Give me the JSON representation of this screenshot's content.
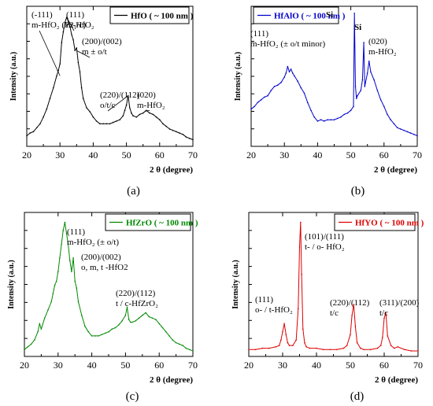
{
  "chart_data": [
    {
      "type": "line",
      "panel_label": "(a)",
      "xlabel": "2 θ (degree)",
      "ylabel": "Intensity (a.u.)",
      "xlim": [
        20,
        70
      ],
      "x_ticks": [
        20,
        30,
        40,
        50,
        60,
        70
      ],
      "y_ticks_labeled": false,
      "grid": false,
      "legend_position": "top-right",
      "series": [
        {
          "name": "HfO ( ~ 100 nm )",
          "color": "#000000",
          "x": [
            20,
            21,
            22,
            23,
            24,
            25,
            26,
            27,
            28,
            29,
            29.5,
            30,
            30.5,
            31,
            31.5,
            32,
            32.5,
            33,
            33.5,
            34,
            34.5,
            35,
            35.5,
            36,
            36.5,
            37,
            38,
            39,
            40,
            41,
            42,
            43,
            44,
            45,
            46,
            47,
            48,
            49,
            49.5,
            50,
            50.5,
            51,
            51.5,
            52,
            53,
            54,
            55,
            56,
            57,
            58,
            59,
            60,
            61,
            62,
            63,
            64,
            65,
            66,
            67,
            68,
            69,
            70
          ],
          "y": [
            0.08,
            0.1,
            0.11,
            0.14,
            0.17,
            0.22,
            0.28,
            0.36,
            0.44,
            0.53,
            0.57,
            0.62,
            0.78,
            0.86,
            0.93,
            0.97,
            0.94,
            0.9,
            0.84,
            0.8,
            0.72,
            0.74,
            0.63,
            0.56,
            0.44,
            0.36,
            0.29,
            0.26,
            0.22,
            0.19,
            0.17,
            0.17,
            0.17,
            0.17,
            0.18,
            0.19,
            0.2,
            0.23,
            0.27,
            0.31,
            0.38,
            0.29,
            0.25,
            0.23,
            0.22,
            0.24,
            0.25,
            0.27,
            0.25,
            0.24,
            0.22,
            0.2,
            0.17,
            0.15,
            0.13,
            0.12,
            0.11,
            0.1,
            0.09,
            0.07,
            0.06,
            0.05
          ]
        }
      ],
      "annotations": [
        {
          "lines": [
            "(-111)",
            "m-HfO₂ (P2₁/c)"
          ]
        },
        {
          "lines": [
            "(111)",
            "m-HfO₂"
          ]
        },
        {
          "lines": [
            "(200)/(002)",
            "m ± o/t"
          ]
        },
        {
          "lines": [
            "(220)/(112)",
            "o/t/c"
          ]
        },
        {
          "lines": [
            "(020)",
            "m-HfO₂"
          ]
        }
      ]
    },
    {
      "type": "line",
      "panel_label": "(b)",
      "xlabel": "2 θ (degree)",
      "ylabel": "Intensity (a.u.)",
      "xlim": [
        20,
        70
      ],
      "x_ticks": [
        20,
        30,
        40,
        50,
        60,
        70
      ],
      "y_ticks_labeled": false,
      "grid": false,
      "legend_position": "top-left",
      "series": [
        {
          "name": "HfAlO ( ~ 100 nm )",
          "color": "#0000cc",
          "x": [
            20,
            21,
            22,
            23,
            24,
            25,
            26,
            27,
            28,
            29,
            30,
            30.5,
            31,
            31.5,
            32,
            32.5,
            33,
            34,
            35,
            36,
            37,
            38,
            39,
            40,
            41,
            42,
            43,
            44,
            45,
            46,
            47,
            48,
            49,
            50,
            50.8,
            51.1,
            51.4,
            51.7,
            52,
            53,
            53.5,
            53.9,
            54.2,
            55,
            55.5,
            56,
            57,
            58,
            59,
            60,
            61,
            62,
            63,
            64,
            65,
            66,
            67,
            68,
            69,
            70
          ],
          "y": [
            0.28,
            0.3,
            0.33,
            0.35,
            0.37,
            0.38,
            0.42,
            0.45,
            0.46,
            0.48,
            0.52,
            0.55,
            0.6,
            0.56,
            0.58,
            0.55,
            0.53,
            0.49,
            0.44,
            0.4,
            0.33,
            0.27,
            0.22,
            0.19,
            0.2,
            0.19,
            0.2,
            0.2,
            0.2,
            0.21,
            0.22,
            0.24,
            0.25,
            0.27,
            0.3,
            1.0,
            0.45,
            0.36,
            0.38,
            0.42,
            0.5,
            0.78,
            0.45,
            0.55,
            0.64,
            0.56,
            0.5,
            0.42,
            0.35,
            0.3,
            0.24,
            0.2,
            0.17,
            0.14,
            0.13,
            0.12,
            0.11,
            0.1,
            0.09,
            0.08
          ]
        }
      ],
      "annotations": [
        {
          "lines": [
            "(111)",
            "m-HfO₂ (± o/t minor)"
          ]
        },
        {
          "lines": [
            "Si"
          ]
        },
        {
          "lines": [
            "Si"
          ]
        },
        {
          "lines": [
            "(020)",
            "m-HfO₂"
          ]
        }
      ]
    },
    {
      "type": "line",
      "panel_label": "(c)",
      "xlabel": "2 θ (degree)",
      "ylabel": "Intensity (a.u.)",
      "xlim": [
        20,
        70
      ],
      "x_ticks": [
        20,
        30,
        40,
        50,
        60,
        70
      ],
      "y_ticks_labeled": false,
      "grid": false,
      "legend_position": "top-right",
      "series": [
        {
          "name": "HfZrO ( ~ 100 nm )",
          "color": "#008800",
          "x": [
            20,
            21,
            22,
            23,
            24,
            24.5,
            25,
            26,
            27,
            28,
            28.5,
            29,
            29.5,
            30,
            30.5,
            31,
            31.5,
            32,
            32.5,
            33,
            33.5,
            34,
            34.5,
            35,
            35.5,
            36,
            37,
            38,
            39,
            40,
            41,
            42,
            43,
            44,
            45,
            46,
            47,
            48,
            49,
            50,
            50.5,
            51,
            51.5,
            52,
            53,
            54,
            55,
            56,
            57,
            58,
            59,
            60,
            61,
            62,
            63,
            64,
            65,
            66,
            67,
            68,
            69,
            70
          ],
          "y": [
            0.05,
            0.07,
            0.09,
            0.12,
            0.18,
            0.24,
            0.2,
            0.28,
            0.34,
            0.4,
            0.46,
            0.52,
            0.55,
            0.62,
            0.72,
            0.82,
            0.92,
            0.98,
            0.9,
            0.82,
            0.7,
            0.62,
            0.72,
            0.55,
            0.5,
            0.4,
            0.3,
            0.22,
            0.18,
            0.15,
            0.15,
            0.15,
            0.16,
            0.17,
            0.18,
            0.2,
            0.21,
            0.23,
            0.26,
            0.3,
            0.36,
            0.27,
            0.25,
            0.25,
            0.26,
            0.28,
            0.3,
            0.32,
            0.29,
            0.28,
            0.27,
            0.24,
            0.21,
            0.18,
            0.15,
            0.12,
            0.1,
            0.09,
            0.08,
            0.06,
            0.05,
            0.04
          ]
        }
      ],
      "annotations": [
        {
          "lines": [
            "(111)",
            "m-HfO₂ (± o/t)"
          ]
        },
        {
          "lines": [
            "(200)/(002)",
            "o, m, t -HfO2"
          ]
        },
        {
          "lines": [
            "(220)/(112)",
            "t / c-HfZrO₂"
          ]
        }
      ]
    },
    {
      "type": "line",
      "panel_label": "(d)",
      "xlabel": "2 θ (degree)",
      "ylabel": "Intensity (a.u.)",
      "xlim": [
        20,
        70
      ],
      "x_ticks": [
        20,
        30,
        40,
        50,
        60,
        70
      ],
      "y_ticks_labeled": false,
      "grid": false,
      "legend_position": "top-right",
      "series": [
        {
          "name": "HfYO ( ~ 100 nm )",
          "color": "#dd0000",
          "x": [
            20,
            22,
            24,
            26,
            28,
            29,
            29.5,
            30,
            30.5,
            31,
            31.5,
            32,
            33,
            34,
            34.6,
            35,
            35.3,
            35.6,
            36,
            36.5,
            37,
            38,
            40,
            42,
            44,
            46,
            48,
            49,
            50,
            50.5,
            51,
            51.5,
            52,
            53,
            54,
            56,
            58,
            59,
            59.5,
            60,
            60.5,
            61,
            62,
            63,
            64,
            66,
            68,
            70
          ],
          "y": [
            0.05,
            0.05,
            0.06,
            0.06,
            0.07,
            0.08,
            0.12,
            0.18,
            0.24,
            0.16,
            0.1,
            0.08,
            0.08,
            0.12,
            0.35,
            0.8,
            0.98,
            0.6,
            0.2,
            0.1,
            0.07,
            0.06,
            0.06,
            0.05,
            0.05,
            0.05,
            0.06,
            0.08,
            0.16,
            0.3,
            0.38,
            0.22,
            0.1,
            0.06,
            0.05,
            0.05,
            0.06,
            0.08,
            0.14,
            0.28,
            0.32,
            0.15,
            0.08,
            0.06,
            0.07,
            0.05,
            0.04,
            0.04
          ]
        }
      ],
      "annotations": [
        {
          "lines": [
            "(111)",
            "o- / t-HfO₂"
          ]
        },
        {
          "lines": [
            "(101)/(111)",
            "t- / o- HfO₂"
          ]
        },
        {
          "lines": [
            "(220)/(112)",
            "t/c"
          ]
        },
        {
          "lines": [
            "(311)/(200)",
            "t/c"
          ]
        }
      ]
    }
  ]
}
